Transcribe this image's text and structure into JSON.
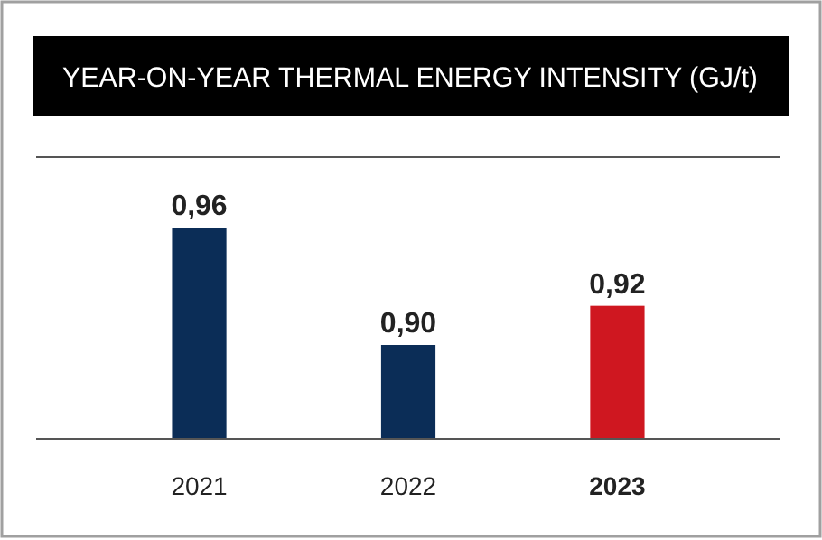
{
  "chart_data": {
    "type": "bar",
    "title": "YEAR-ON-YEAR THERMAL ENERGY INTENSITY (GJ/t)",
    "categories": [
      "2021",
      "2022",
      "2023"
    ],
    "values": [
      0.96,
      0.9,
      0.92
    ],
    "value_labels": [
      "0,96",
      "0,90",
      "0,92"
    ],
    "colors": [
      "#0b2d57",
      "#0b2d57",
      "#cf1720"
    ],
    "ylim": [
      0.852,
      0.996
    ],
    "tick_labels": "x"
  }
}
